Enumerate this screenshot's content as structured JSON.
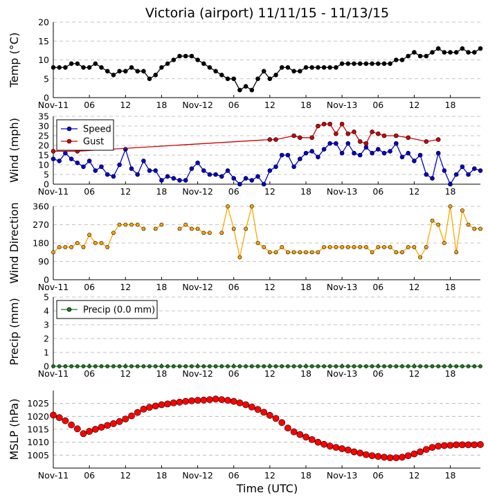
{
  "figure": {
    "title": "Victoria (airport) 11/11/15 - 11/13/15",
    "xlabel": "Time (UTC)",
    "xtick_labels": [
      "Nov-11",
      "06",
      "12",
      "18",
      "Nov-12",
      "06",
      "12",
      "18",
      "Nov-13",
      "06",
      "12",
      "18"
    ]
  },
  "chart_data": [
    {
      "type": "line",
      "ylabel": "Temp (°C)",
      "ylim": [
        0,
        20
      ],
      "yticks": [
        0,
        5,
        10,
        15,
        20
      ],
      "xlim": [
        0,
        71
      ],
      "grid": true,
      "series": [
        {
          "color": "#000000",
          "x": [
            0,
            1,
            2,
            3,
            4,
            5,
            6,
            7,
            8,
            9,
            10,
            11,
            12,
            13,
            14,
            15,
            16,
            17,
            18,
            19,
            20,
            21,
            22,
            23,
            24,
            25,
            26,
            27,
            28,
            29,
            30,
            31,
            32,
            33,
            34,
            35,
            36,
            37,
            38,
            39,
            40,
            41,
            42,
            43,
            44,
            45,
            46,
            47,
            48,
            49,
            50,
            51,
            52,
            53,
            54,
            55,
            56,
            57,
            58,
            59,
            60,
            61,
            62,
            63,
            64,
            65,
            66,
            67,
            68,
            69,
            70,
            71
          ],
          "y": [
            8,
            8,
            8,
            9,
            9,
            8,
            8,
            9,
            8,
            7,
            6,
            7,
            7,
            8,
            7,
            7,
            5,
            6,
            8,
            9,
            10,
            11,
            11,
            11,
            10,
            9,
            8,
            7,
            6,
            5,
            5,
            2,
            3,
            2,
            5,
            7,
            5,
            6,
            8,
            8,
            7,
            7,
            8,
            8,
            8,
            8,
            8,
            8,
            9,
            9,
            9,
            9,
            9,
            9,
            9,
            9,
            9,
            10,
            10,
            11,
            12,
            11,
            11,
            12,
            13,
            12,
            12,
            12,
            13,
            12,
            12,
            13
          ]
        }
      ]
    },
    {
      "type": "line",
      "ylabel": "Wind (mph)",
      "ylim": [
        0,
        35
      ],
      "yticks": [
        0,
        5,
        10,
        15,
        20,
        25,
        30,
        35
      ],
      "xlim": [
        0,
        71
      ],
      "legend": "top-left",
      "grid": true,
      "series": [
        {
          "name": "Speed",
          "color": "#0000cc",
          "x": [
            0,
            1,
            2,
            3,
            4,
            5,
            6,
            7,
            8,
            9,
            10,
            11,
            12,
            13,
            14,
            15,
            16,
            17,
            18,
            19,
            20,
            21,
            22,
            23,
            24,
            25,
            26,
            27,
            28,
            29,
            30,
            31,
            32,
            33,
            34,
            35,
            36,
            37,
            38,
            39,
            40,
            41,
            42,
            43,
            44,
            45,
            46,
            47,
            48,
            49,
            50,
            51,
            52,
            53,
            54,
            55,
            56,
            57,
            58,
            59,
            60,
            61,
            62,
            63,
            64,
            65,
            66,
            67,
            68,
            69,
            70,
            71
          ],
          "y": [
            13,
            12,
            16,
            13,
            11,
            9,
            12,
            7,
            9,
            5,
            4,
            10,
            18,
            8,
            5,
            12,
            7,
            7,
            2,
            4,
            3,
            2,
            2,
            8,
            11,
            7,
            5,
            5,
            4,
            7,
            3,
            0,
            3,
            2,
            4,
            0,
            7,
            9,
            15,
            15,
            9,
            13,
            16,
            17,
            14,
            18,
            21,
            21,
            16,
            21,
            16,
            15,
            19,
            16,
            18,
            16,
            17,
            21,
            14,
            16,
            12,
            15,
            5,
            3,
            16,
            7,
            0,
            5,
            9,
            5,
            8,
            7
          ]
        },
        {
          "name": "Gust",
          "color": "#cc0000",
          "x": [
            0,
            4,
            36,
            37,
            40,
            41,
            43,
            44,
            45,
            46,
            47,
            48,
            49,
            50,
            51,
            52,
            53,
            54,
            55,
            57,
            59,
            62,
            64
          ],
          "y": [
            17,
            17,
            23,
            23,
            25,
            24,
            24,
            30,
            31,
            31,
            26,
            31,
            26,
            27,
            22,
            21,
            27,
            26,
            25,
            25,
            24,
            22,
            23
          ]
        }
      ]
    },
    {
      "type": "line",
      "ylabel": "Wind Direction",
      "ylim": [
        0,
        360
      ],
      "yticks": [
        0,
        90,
        180,
        270,
        360
      ],
      "xlim": [
        0,
        71
      ],
      "grid": true,
      "series": [
        {
          "color": "#ffa500",
          "x": [
            0,
            1,
            2,
            3,
            4,
            5,
            6,
            7,
            8,
            9,
            10,
            11,
            12,
            13,
            14,
            15,
            16,
            17,
            18,
            19,
            20,
            21,
            22,
            23,
            24,
            25,
            26,
            27,
            28,
            29,
            30,
            31,
            32,
            33,
            34,
            35,
            36,
            37,
            38,
            39,
            40,
            41,
            42,
            43,
            44,
            45,
            46,
            47,
            48,
            49,
            50,
            51,
            52,
            53,
            54,
            55,
            56,
            57,
            58,
            59,
            60,
            61,
            62,
            63,
            64,
            65,
            66,
            67,
            68,
            69,
            70,
            71
          ],
          "y": [
            135,
            160,
            160,
            160,
            180,
            160,
            220,
            180,
            180,
            160,
            230,
            270,
            270,
            270,
            270,
            250,
            null,
            250,
            270,
            null,
            null,
            250,
            270,
            250,
            250,
            230,
            230,
            null,
            230,
            360,
            250,
            110,
            250,
            360,
            180,
            160,
            135,
            135,
            160,
            135,
            135,
            135,
            135,
            135,
            135,
            160,
            160,
            160,
            160,
            160,
            160,
            160,
            160,
            135,
            160,
            160,
            160,
            135,
            135,
            160,
            160,
            110,
            160,
            290,
            270,
            180,
            360,
            135,
            340,
            270,
            250,
            250
          ]
        }
      ]
    },
    {
      "type": "line",
      "ylabel": "Precip (mm)",
      "ylim": [
        0,
        5
      ],
      "yticks": [
        0,
        1,
        2,
        3,
        4,
        5
      ],
      "xlim": [
        0,
        71
      ],
      "legend": "top-left",
      "grid": true,
      "series": [
        {
          "name": "Precip (0.0 mm)",
          "color": "#1a7a1a",
          "x": [
            0,
            1,
            2,
            3,
            4,
            5,
            6,
            7,
            8,
            9,
            10,
            11,
            12,
            13,
            14,
            15,
            16,
            17,
            18,
            19,
            20,
            21,
            22,
            23,
            24,
            25,
            26,
            27,
            28,
            29,
            30,
            31,
            32,
            33,
            34,
            35,
            36,
            37,
            38,
            39,
            40,
            41,
            42,
            43,
            44,
            45,
            46,
            47,
            48,
            49,
            50,
            51,
            52,
            53,
            54,
            55,
            56,
            57,
            58,
            59,
            60,
            61,
            62,
            63,
            64,
            65,
            66,
            67,
            68,
            69,
            70,
            71
          ],
          "y": [
            0,
            0,
            0,
            0,
            0,
            0,
            0,
            0,
            0,
            0,
            0,
            0,
            0,
            0,
            0,
            0,
            0,
            0,
            0,
            0,
            0,
            0,
            0,
            0,
            0,
            0,
            0,
            0,
            0,
            0,
            0,
            0,
            0,
            0,
            0,
            0,
            0,
            0,
            0,
            0,
            0,
            0,
            0,
            0,
            0,
            0,
            0,
            0,
            0,
            0,
            0,
            0,
            0,
            0,
            0,
            0,
            0,
            0,
            0,
            0,
            0,
            0,
            0,
            0,
            0,
            0,
            0,
            0,
            0,
            0,
            0,
            0
          ]
        }
      ]
    },
    {
      "type": "scatter",
      "ylabel": "MSLP (hPa)",
      "ylim": [
        1000,
        1030
      ],
      "yticks": [
        1005,
        1010,
        1015,
        1020,
        1025
      ],
      "xlim": [
        0,
        71
      ],
      "grid": true,
      "series": [
        {
          "color": "#ff0000",
          "x": [
            0,
            1,
            2,
            3,
            4,
            5,
            6,
            7,
            8,
            9,
            10,
            11,
            12,
            13,
            14,
            15,
            16,
            17,
            18,
            19,
            20,
            21,
            22,
            23,
            24,
            25,
            26,
            27,
            28,
            29,
            30,
            31,
            32,
            33,
            34,
            35,
            36,
            37,
            38,
            39,
            40,
            41,
            42,
            43,
            44,
            45,
            46,
            47,
            48,
            49,
            50,
            51,
            52,
            53,
            54,
            55,
            56,
            57,
            58,
            59,
            60,
            61,
            62,
            63,
            64,
            65,
            66,
            67,
            68,
            69,
            70,
            71
          ],
          "y": [
            1020.5,
            1019.5,
            1018.3,
            1016.7,
            1015.2,
            1013.3,
            1014.2,
            1015.0,
            1015.8,
            1016.5,
            1017.2,
            1018.0,
            1019.0,
            1020.2,
            1021.5,
            1022.8,
            1023.5,
            1024.0,
            1024.5,
            1024.8,
            1025.2,
            1025.5,
            1025.8,
            1026.0,
            1026.2,
            1026.3,
            1026.5,
            1026.7,
            1026.5,
            1026.2,
            1025.8,
            1025.2,
            1024.5,
            1023.6,
            1022.7,
            1021.6,
            1020.4,
            1019.2,
            1017.6,
            1015.5,
            1014.0,
            1013.0,
            1012.0,
            1011.0,
            1010.0,
            1009.2,
            1008.5,
            1008.0,
            1007.5,
            1007.0,
            1006.3,
            1005.8,
            1005.2,
            1004.8,
            1004.5,
            1004.2,
            1004.0,
            1004.0,
            1004.2,
            1004.8,
            1005.5,
            1006.3,
            1007.2,
            1008.0,
            1008.5,
            1008.7,
            1008.8,
            1009.0,
            1009.0,
            1009.0,
            1009.0,
            1009.1
          ]
        }
      ]
    }
  ]
}
